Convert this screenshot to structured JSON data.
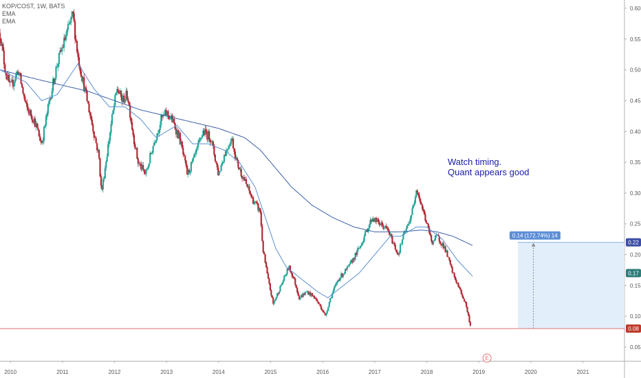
{
  "legend": {
    "symbol": "KOP/COST, 1W, BATS",
    "ema1": "EMA",
    "ema2": "EMA"
  },
  "note": {
    "line1": "Watch timing.",
    "line2": "Quant appears good"
  },
  "colors": {
    "up": "#26a69a",
    "down": "#b22833",
    "ema_fast": "#5b8fd0",
    "ema_slow": "#3a5fa8",
    "price_line": "#e57373",
    "range_fill": "#e3eefb",
    "range_edge": "#8ab0de",
    "badge_blue": "#3d4ea6",
    "badge_teal": "#2e7d7a",
    "badge_red": "#c0392b",
    "earnings": "#e57373"
  },
  "chart_data": {
    "type": "candlestick",
    "x_range": [
      2009.8,
      2021.8
    ],
    "ylim": [
      0.05,
      0.6
    ],
    "x_ticks": [
      "2010",
      "2011",
      "2012",
      "2013",
      "2014",
      "2015",
      "2016",
      "2017",
      "2018",
      "2019",
      "2020",
      "2021"
    ],
    "y_ticks": [
      "0.60",
      "0.55",
      "0.50",
      "0.45",
      "0.40",
      "0.35",
      "0.30",
      "0.25",
      "0.20",
      "0.15",
      "0.10",
      "0.05"
    ],
    "price_anchors": [
      [
        2009.8,
        0.56
      ],
      [
        2009.9,
        0.5
      ],
      [
        2010.0,
        0.47
      ],
      [
        2010.15,
        0.5
      ],
      [
        2010.3,
        0.44
      ],
      [
        2010.45,
        0.42
      ],
      [
        2010.6,
        0.38
      ],
      [
        2010.75,
        0.45
      ],
      [
        2010.9,
        0.51
      ],
      [
        2011.05,
        0.55
      ],
      [
        2011.2,
        0.59
      ],
      [
        2011.3,
        0.52
      ],
      [
        2011.4,
        0.48
      ],
      [
        2011.55,
        0.42
      ],
      [
        2011.7,
        0.36
      ],
      [
        2011.75,
        0.3
      ],
      [
        2011.85,
        0.36
      ],
      [
        2011.95,
        0.42
      ],
      [
        2012.05,
        0.47
      ],
      [
        2012.15,
        0.45
      ],
      [
        2012.25,
        0.46
      ],
      [
        2012.35,
        0.4
      ],
      [
        2012.45,
        0.35
      ],
      [
        2012.6,
        0.33
      ],
      [
        2012.75,
        0.38
      ],
      [
        2012.9,
        0.42
      ],
      [
        2013.0,
        0.43
      ],
      [
        2013.1,
        0.42
      ],
      [
        2013.25,
        0.39
      ],
      [
        2013.4,
        0.33
      ],
      [
        2013.55,
        0.36
      ],
      [
        2013.7,
        0.4
      ],
      [
        2013.85,
        0.39
      ],
      [
        2014.0,
        0.33
      ],
      [
        2014.1,
        0.36
      ],
      [
        2014.25,
        0.39
      ],
      [
        2014.35,
        0.35
      ],
      [
        2014.5,
        0.32
      ],
      [
        2014.65,
        0.29
      ],
      [
        2014.8,
        0.27
      ],
      [
        2014.85,
        0.21
      ],
      [
        2014.95,
        0.16
      ],
      [
        2015.05,
        0.12
      ],
      [
        2015.2,
        0.15
      ],
      [
        2015.35,
        0.18
      ],
      [
        2015.45,
        0.16
      ],
      [
        2015.55,
        0.13
      ],
      [
        2015.7,
        0.14
      ],
      [
        2015.85,
        0.13
      ],
      [
        2016.0,
        0.11
      ],
      [
        2016.05,
        0.1
      ],
      [
        2016.15,
        0.13
      ],
      [
        2016.3,
        0.16
      ],
      [
        2016.5,
        0.18
      ],
      [
        2016.7,
        0.21
      ],
      [
        2016.85,
        0.24
      ],
      [
        2016.95,
        0.26
      ],
      [
        2017.1,
        0.25
      ],
      [
        2017.25,
        0.24
      ],
      [
        2017.35,
        0.22
      ],
      [
        2017.45,
        0.2
      ],
      [
        2017.55,
        0.23
      ],
      [
        2017.65,
        0.25
      ],
      [
        2017.75,
        0.28
      ],
      [
        2017.8,
        0.31
      ],
      [
        2017.9,
        0.28
      ],
      [
        2018.0,
        0.25
      ],
      [
        2018.1,
        0.22
      ],
      [
        2018.2,
        0.23
      ],
      [
        2018.35,
        0.21
      ],
      [
        2018.5,
        0.17
      ],
      [
        2018.65,
        0.14
      ],
      [
        2018.75,
        0.12
      ],
      [
        2018.8,
        0.1
      ],
      [
        2018.85,
        0.08
      ]
    ],
    "ema_fast_anchors": [
      [
        2009.8,
        0.5
      ],
      [
        2010.3,
        0.48
      ],
      [
        2010.6,
        0.45
      ],
      [
        2010.9,
        0.46
      ],
      [
        2011.3,
        0.51
      ],
      [
        2011.6,
        0.47
      ],
      [
        2011.9,
        0.44
      ],
      [
        2012.2,
        0.44
      ],
      [
        2012.5,
        0.42
      ],
      [
        2012.8,
        0.39
      ],
      [
        2013.2,
        0.41
      ],
      [
        2013.5,
        0.38
      ],
      [
        2013.8,
        0.38
      ],
      [
        2014.1,
        0.37
      ],
      [
        2014.4,
        0.35
      ],
      [
        2014.7,
        0.31
      ],
      [
        2014.9,
        0.26
      ],
      [
        2015.1,
        0.21
      ],
      [
        2015.3,
        0.18
      ],
      [
        2015.6,
        0.16
      ],
      [
        2015.9,
        0.14
      ],
      [
        2016.1,
        0.13
      ],
      [
        2016.4,
        0.15
      ],
      [
        2016.7,
        0.17
      ],
      [
        2017.0,
        0.2
      ],
      [
        2017.3,
        0.23
      ],
      [
        2017.5,
        0.23
      ],
      [
        2017.8,
        0.245
      ],
      [
        2018.0,
        0.245
      ],
      [
        2018.3,
        0.225
      ],
      [
        2018.6,
        0.19
      ],
      [
        2018.88,
        0.165
      ]
    ],
    "ema_slow_anchors": [
      [
        2009.8,
        0.5
      ],
      [
        2010.5,
        0.485
      ],
      [
        2011.0,
        0.475
      ],
      [
        2011.5,
        0.465
      ],
      [
        2012.0,
        0.45
      ],
      [
        2012.5,
        0.435
      ],
      [
        2013.0,
        0.425
      ],
      [
        2013.5,
        0.415
      ],
      [
        2014.0,
        0.405
      ],
      [
        2014.5,
        0.39
      ],
      [
        2014.8,
        0.37
      ],
      [
        2015.1,
        0.34
      ],
      [
        2015.4,
        0.31
      ],
      [
        2015.8,
        0.28
      ],
      [
        2016.2,
        0.26
      ],
      [
        2016.6,
        0.245
      ],
      [
        2017.0,
        0.237
      ],
      [
        2017.5,
        0.237
      ],
      [
        2017.9,
        0.24
      ],
      [
        2018.2,
        0.237
      ],
      [
        2018.5,
        0.23
      ],
      [
        2018.88,
        0.215
      ]
    ],
    "current_price": 0.08,
    "measure": {
      "label": "0.14 (172.74%) 14",
      "x_start": 2019.75,
      "x_end": 2021.8,
      "y_low": 0.08,
      "y_high": 0.22,
      "arrow_x": 2020.05
    },
    "price_badges": [
      {
        "label": "0.22",
        "value": 0.22,
        "color_key": "badge_blue"
      },
      {
        "label": "0.17",
        "value": 0.17,
        "color_key": "badge_teal"
      },
      {
        "label": "0.08",
        "value": 0.08,
        "color_key": "badge_red"
      }
    ],
    "earnings_marker": {
      "label": "E",
      "x": 2019.0
    }
  }
}
